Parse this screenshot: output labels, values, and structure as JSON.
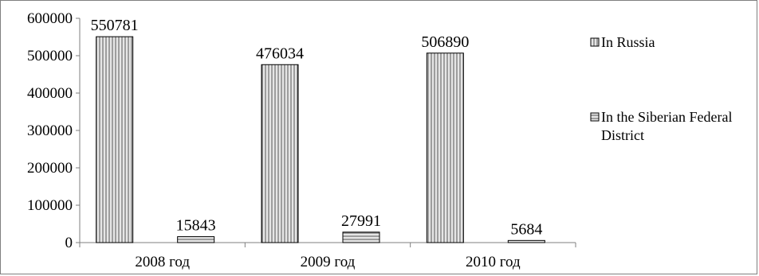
{
  "chart_data": {
    "type": "bar",
    "categories": [
      "2008 год",
      "2009 год",
      "2010 год"
    ],
    "series": [
      {
        "name": "In Russia",
        "values": [
          550781,
          476034,
          506890
        ]
      },
      {
        "name": "In the Siberian Federal District",
        "values": [
          15843,
          27991,
          5684
        ]
      }
    ],
    "data_labels": [
      [
        "550781",
        "476034",
        "506890"
      ],
      [
        "15843",
        "27991",
        "5684"
      ]
    ],
    "y_ticks": [
      "0",
      "100000",
      "200000",
      "300000",
      "400000",
      "500000",
      "600000"
    ],
    "ylim": [
      0,
      600000
    ],
    "legend_lines": [
      [
        "In Russia"
      ],
      [
        "In the Siberian Federal",
        "District"
      ]
    ],
    "legend_position": "right",
    "grid": false,
    "fill_patterns": [
      "vertical-stripes",
      "horizontal-stripes"
    ],
    "colors": {
      "bar_fill": "#cfcfcf",
      "bar_edge": "#000000",
      "axis": "#7f7f7f"
    }
  }
}
